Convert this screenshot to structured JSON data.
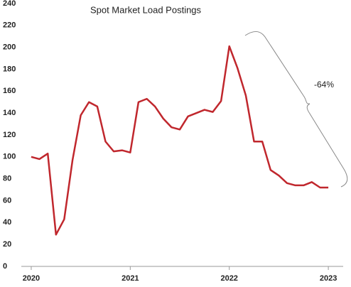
{
  "chart_data": {
    "type": "line",
    "title": "Spot Market Load Postings",
    "annotation": "-64%",
    "x": [
      2020,
      2020.083,
      2020.167,
      2020.25,
      2020.333,
      2020.417,
      2020.5,
      2020.583,
      2020.667,
      2020.75,
      2020.833,
      2020.917,
      2021,
      2021.083,
      2021.167,
      2021.25,
      2021.333,
      2021.417,
      2021.5,
      2021.583,
      2021.667,
      2021.75,
      2021.833,
      2021.917,
      2022,
      2022.083,
      2022.167,
      2022.25,
      2022.333,
      2022.417,
      2022.5,
      2022.583,
      2022.667,
      2022.75,
      2022.833,
      2022.917,
      2023
    ],
    "series": [
      {
        "name": "Spot Market Load Postings",
        "color": "#c0272d",
        "values": [
          100,
          98,
          103,
          29,
          43,
          97,
          138,
          150,
          146,
          114,
          105,
          106,
          104,
          150,
          153,
          146,
          135,
          127,
          125,
          137,
          140,
          143,
          141,
          151,
          201,
          181,
          156,
          114,
          114,
          88,
          83,
          76,
          74,
          74,
          77,
          72,
          72
        ]
      }
    ],
    "xlim": [
      2019.9,
      2023.15
    ],
    "xticks": [
      2020,
      2021,
      2022,
      2023
    ],
    "ylim": [
      0,
      240
    ],
    "yticks": [
      0,
      20,
      40,
      60,
      80,
      100,
      120,
      140,
      160,
      180,
      200,
      220,
      240
    ],
    "grid": false
  }
}
